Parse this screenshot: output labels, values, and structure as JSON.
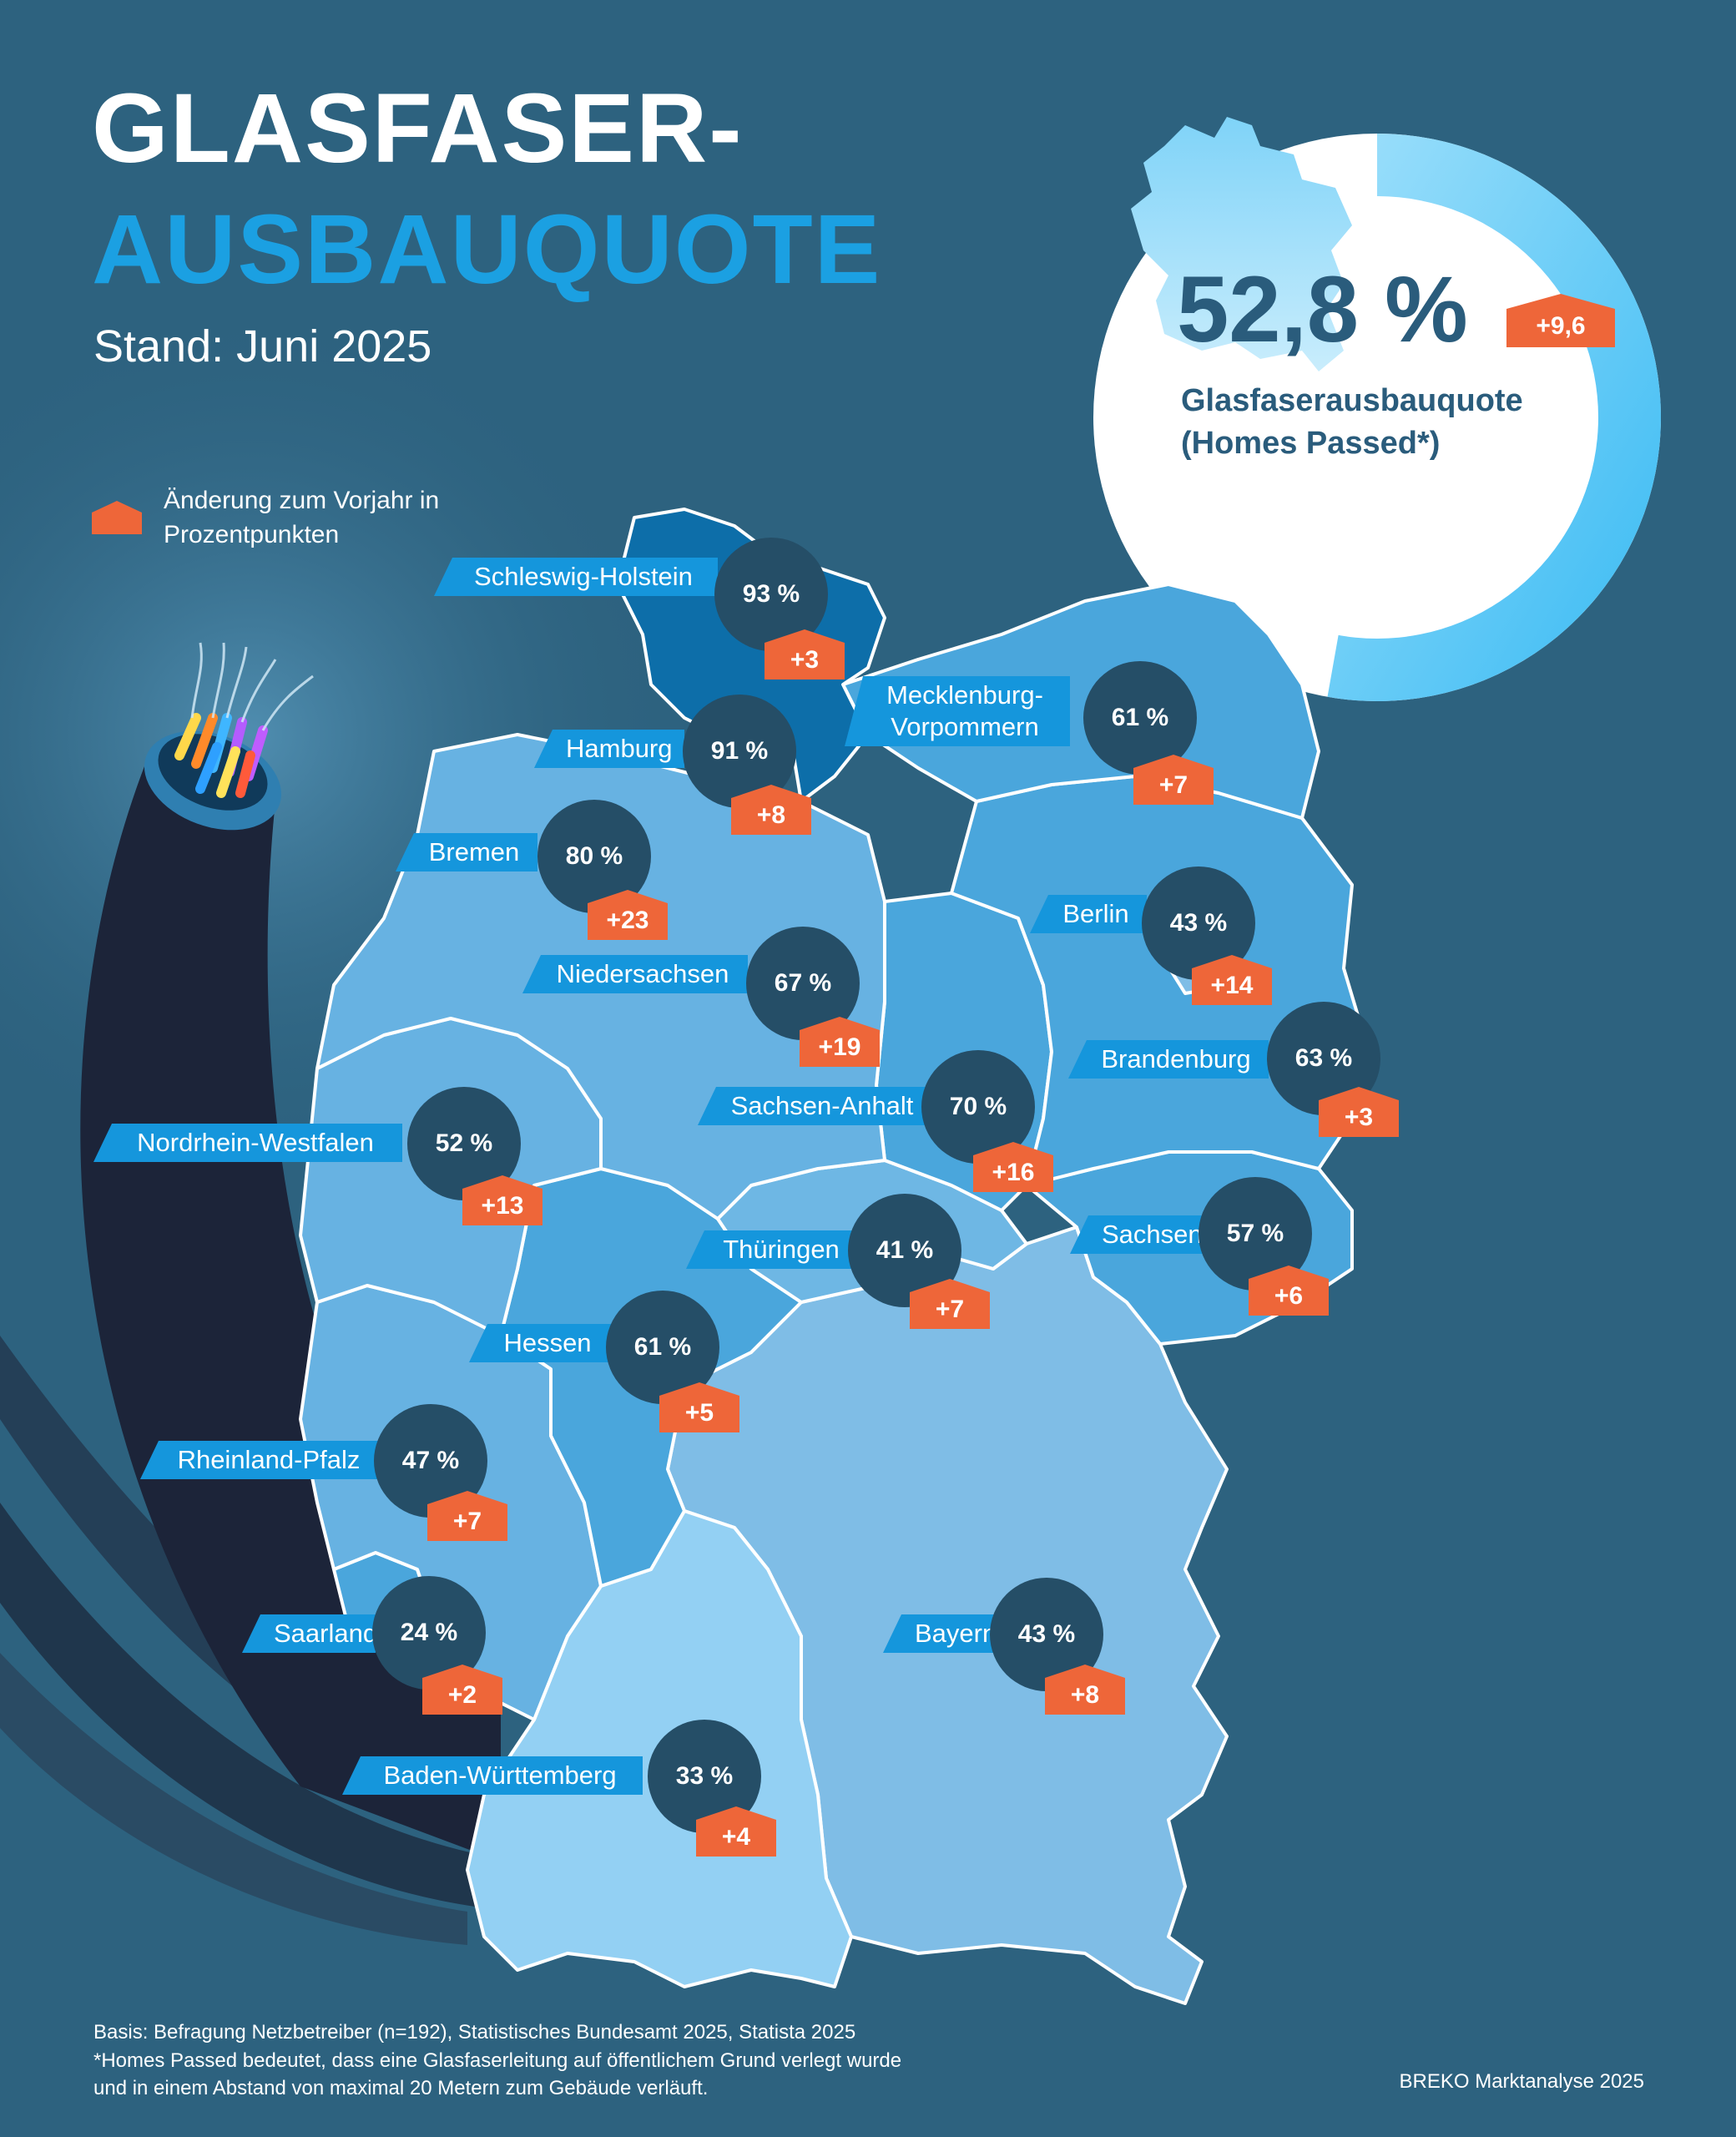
{
  "header": {
    "title_line1": "GLASFASER-",
    "title_line2": "AUSBAUQUOTE",
    "date": "Stand: Juni 2025"
  },
  "legend": {
    "text": "Änderung zum Vorjahr in Prozentpunkten",
    "icon": "orange-house-badge-icon"
  },
  "national": {
    "value": "52,8 %",
    "change": "+9,6",
    "label": "Glasfaserausbauquote (Homes Passed*)",
    "donut_fraction": 0.528
  },
  "states": [
    {
      "name": "Schleswig-Holstein",
      "value": "93 %",
      "change": "+3"
    },
    {
      "name": "Hamburg",
      "value": "91 %",
      "change": "+8"
    },
    {
      "name": "Mecklenburg-Vorpommern",
      "value": "61 %",
      "change": "+7"
    },
    {
      "name": "Bremen",
      "value": "80 %",
      "change": "+23"
    },
    {
      "name": "Berlin",
      "value": "43 %",
      "change": "+14"
    },
    {
      "name": "Niedersachsen",
      "value": "67 %",
      "change": "+19"
    },
    {
      "name": "Brandenburg",
      "value": "63 %",
      "change": "+3"
    },
    {
      "name": "Sachsen-Anhalt",
      "value": "70 %",
      "change": "+16"
    },
    {
      "name": "Nordrhein-Westfalen",
      "value": "52 %",
      "change": "+13"
    },
    {
      "name": "Sachsen",
      "value": "57 %",
      "change": "+6"
    },
    {
      "name": "Thüringen",
      "value": "41 %",
      "change": "+7"
    },
    {
      "name": "Hessen",
      "value": "61 %",
      "change": "+5"
    },
    {
      "name": "Rheinland-Pfalz",
      "value": "47 %",
      "change": "+7"
    },
    {
      "name": "Saarland",
      "value": "24 %",
      "change": "+2"
    },
    {
      "name": "Bayern",
      "value": "43 %",
      "change": "+8"
    },
    {
      "name": "Baden-Württemberg",
      "value": "33 %",
      "change": "+4"
    }
  ],
  "footnote": {
    "line1": "Basis: Befragung Netzbetreiber (n=192), Statistisches Bundesamt 2025, Statista 2025",
    "line2": "*Homes Passed bedeutet, dass eine Glasfaserleitung auf öffentlichem Grund verlegt wurde",
    "line3": "und in einem Abstand von maximal 20 Metern zum Gebäude verläuft."
  },
  "source": "BREKO Marktanalyse 2025",
  "colors": {
    "background": "#2d627f",
    "accent_blue": "#1ba0e2",
    "label_blue": "#1596dc",
    "circle_dark": "#254e67",
    "badge_orange": "#ee6639",
    "donut_light": "#5fc9f8"
  }
}
